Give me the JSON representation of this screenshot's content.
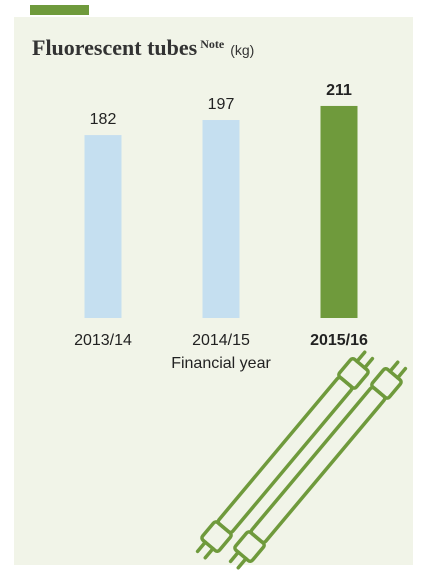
{
  "chart_data": {
    "type": "bar",
    "title": "Fluorescent tubes",
    "title_note": "Note",
    "title_unit": "(kg)",
    "categories": [
      "2013/14",
      "2014/15",
      "2015/16"
    ],
    "values": [
      182,
      197,
      211
    ],
    "colors": [
      "#c5dff0",
      "#c5dff0",
      "#6f9a3c"
    ],
    "bold": [
      false,
      false,
      true
    ],
    "xlabel": "Financial year"
  }
}
